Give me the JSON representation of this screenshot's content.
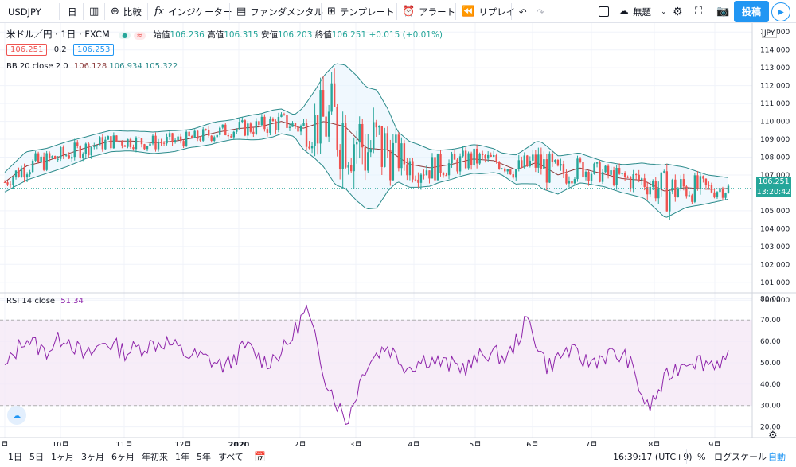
{
  "toolbar": {
    "symbol": "USDJPY",
    "interval": "日",
    "compare": "比較",
    "indicators": "インジケーター",
    "fundamentals": "ファンダメンタル",
    "templates": "テンプレート",
    "alert": "アラート",
    "replay": "リプレイ",
    "layout_name": "無題",
    "publish": "投稿"
  },
  "legend": {
    "title": "米ドル／円 · 1日 · FXCM",
    "open_label": "始値",
    "open": "106.236",
    "high_label": "高値",
    "high": "106.315",
    "low_label": "安値",
    "low": "106.203",
    "close_label": "終値",
    "close": "106.251",
    "change": "+0.015 (+0.01%)",
    "bid": "106.251",
    "spread": "0.2",
    "ask": "106.253",
    "bb_label": "BB 20 close 2 0",
    "bb_mid": "106.128",
    "bb_upper": "106.934",
    "bb_lower": "105.322",
    "rsi_label": "RSI 14 close",
    "rsi_value": "51.34"
  },
  "price_axis": {
    "currency": "JPY",
    "last_price": "106.251",
    "countdown": "13:20:42",
    "price_ticks": [
      "115.000",
      "114.000",
      "113.000",
      "112.000",
      "111.000",
      "110.000",
      "109.000",
      "108.000",
      "107.000",
      "105.000",
      "104.000",
      "103.000",
      "102.000",
      "101.000",
      "100.000"
    ],
    "rsi_ticks": [
      "80.00",
      "70.00",
      "60.00",
      "50.00",
      "40.00",
      "30.00",
      "20.00"
    ]
  },
  "time_axis": [
    "月",
    "10月",
    "11月",
    "12月",
    "2020",
    "2月",
    "3月",
    "4月",
    "5月",
    "6月",
    "7月",
    "8月",
    "9月"
  ],
  "bottom": {
    "ranges": [
      "1日",
      "5日",
      "1ヶ月",
      "3ヶ月",
      "6ヶ月",
      "年初来",
      "1年",
      "5年",
      "すべて"
    ],
    "clock": "16:39:17 (UTC+9)",
    "percent": "%",
    "log": "ログスケール",
    "auto": "自動"
  },
  "colors": {
    "up": "#26a69a",
    "down": "#ef5350",
    "bb_band": "#2a8a8a",
    "bb_mid": "#8b3a3a",
    "rsi": "#8e24aa",
    "accent": "#2196f3"
  },
  "chart_data": [
    {
      "type": "line",
      "title": "米ドル／円 · 1日 · FXCM",
      "ylim": [
        100.5,
        115.5
      ],
      "series": [
        {
          "name": "BB 20 close 2 0",
          "values": [
            106.6,
            107.5,
            107.8,
            108.2,
            108.6,
            108.9,
            108.9,
            108.8,
            108.9,
            109.1,
            109.4,
            109.6,
            109.7,
            110.0,
            109.6,
            110.0,
            109.7,
            108.5,
            108.4,
            107.6,
            107.4,
            107.6,
            107.9,
            107.8,
            107.3,
            107.7,
            107.0,
            107.4,
            107.1,
            106.8,
            106.7,
            106.1,
            106.3,
            106.2,
            106.25
          ]
        }
      ]
    },
    {
      "type": "line",
      "title": "RSI 14 close",
      "ylim": [
        15,
        82
      ],
      "series": [
        {
          "name": "RSI 14 close",
          "values": [
            47,
            62,
            55,
            63,
            52,
            60,
            55,
            58,
            60,
            54,
            52,
            48,
            58,
            50,
            57,
            75,
            42,
            22,
            50,
            58,
            48,
            52,
            49,
            48,
            55,
            52,
            70,
            48,
            56,
            50,
            54,
            52,
            28,
            44,
            52,
            50,
            51.34
          ]
        }
      ]
    }
  ]
}
